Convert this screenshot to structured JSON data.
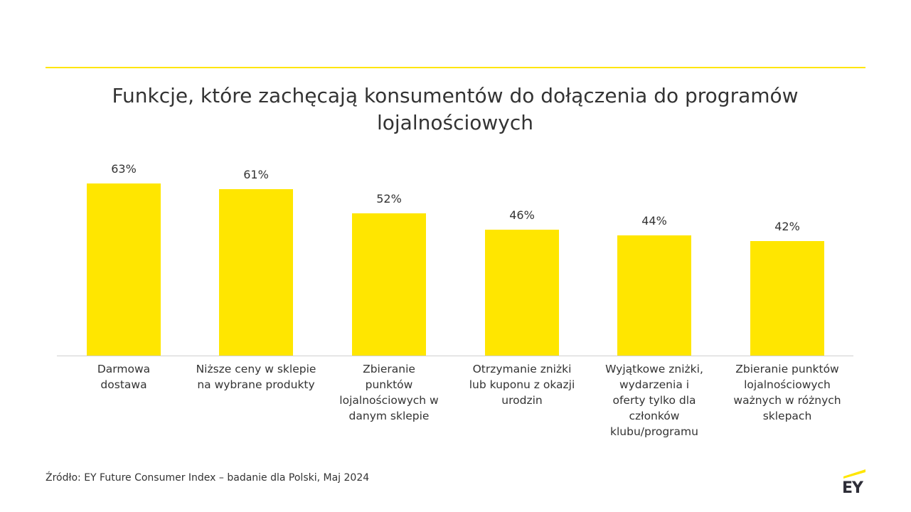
{
  "chart_data": {
    "type": "bar",
    "title": "Funkcje, które zachęcają konsumentów do dołączenia do programów lojalnościowych",
    "categories": [
      "Darmowa dostawa",
      "Niższe ceny w sklepie na wybrane produkty",
      "Zbieranie punktów lojalnościowych w danym sklepie",
      "Otrzymanie zniżki lub kuponu z okazji urodzin",
      "Wyjątkowe zniżki, wydarzenia i oferty tylko dla członków klubu/programu",
      "Zbieranie punktów lojalnościowych ważnych w różnych sklepach"
    ],
    "values": [
      63,
      61,
      52,
      46,
      44,
      42
    ],
    "value_labels": [
      "63%",
      "61%",
      "52%",
      "46%",
      "44%",
      "42%"
    ],
    "color": "#ffe600"
  },
  "footer": {
    "source": "Źródło: EY Future Consumer Index – badanie dla Polski, Maj 2024",
    "logo": "EY"
  }
}
